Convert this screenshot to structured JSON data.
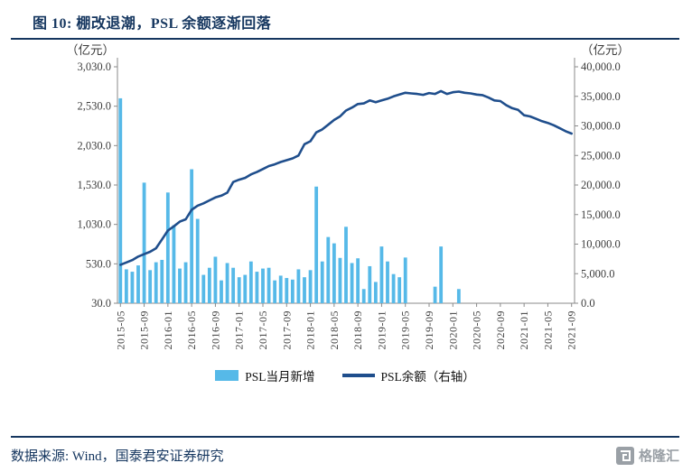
{
  "title": "图 10: 棚改退潮，PSL 余额逐渐回落",
  "legend": {
    "bars": "PSL当月新增",
    "line": "PSL余额（右轴）"
  },
  "footer": {
    "source": "数据来源: Wind，国泰君安证券研究",
    "logo": "格隆汇"
  },
  "colors": {
    "bar": "#56b9e8",
    "line": "#1f4e8c",
    "accent": "#15365f",
    "axis_text": "#3d3d3d"
  },
  "chart_data": {
    "type": "combo",
    "title": "图 10: 棚改退潮，PSL 余额逐渐回落",
    "left_axis_unit": "（亿元）",
    "right_axis_unit": "（亿元）",
    "left_ticks": [
      "30.0",
      "530.0",
      "1,030.0",
      "1,530.0",
      "2,030.0",
      "2,530.0",
      "3,030.0"
    ],
    "right_ticks": [
      "0.0",
      "5,000.0",
      "10,000.0",
      "15,000.0",
      "20,000.0",
      "25,000.0",
      "30,000.0",
      "35,000.0",
      "40,000.0"
    ],
    "left_range": [
      30,
      3030
    ],
    "right_range": [
      0,
      40000
    ],
    "x_label_every": 4,
    "legend_position": "bottom",
    "grid": false,
    "months": [
      "2015-05",
      "2015-06",
      "2015-07",
      "2015-08",
      "2015-09",
      "2015-10",
      "2015-11",
      "2015-12",
      "2016-01",
      "2016-02",
      "2016-03",
      "2016-04",
      "2016-05",
      "2016-06",
      "2016-07",
      "2016-08",
      "2016-09",
      "2016-10",
      "2016-11",
      "2016-12",
      "2017-01",
      "2017-02",
      "2017-03",
      "2017-04",
      "2017-05",
      "2017-06",
      "2017-07",
      "2017-08",
      "2017-09",
      "2017-10",
      "2017-11",
      "2017-12",
      "2018-01",
      "2018-02",
      "2018-03",
      "2018-04",
      "2018-05",
      "2018-06",
      "2018-07",
      "2018-08",
      "2018-09",
      "2018-10",
      "2018-11",
      "2018-12",
      "2019-01",
      "2019-02",
      "2019-03",
      "2019-04",
      "2019-05",
      "2019-06",
      "2019-07",
      "2019-08",
      "2019-09",
      "2019-10",
      "2019-11",
      "2019-12",
      "2020-01",
      "2020-02",
      "2020-03",
      "2020-04",
      "2020-05",
      "2020-06",
      "2020-07",
      "2020-08",
      "2020-09",
      "2020-10",
      "2020-11",
      "2020-12",
      "2021-01",
      "2021-02",
      "2021-03",
      "2021-04",
      "2021-05",
      "2021-06",
      "2021-07",
      "2021-08",
      "2021-09"
    ],
    "series": [
      {
        "name": "PSL当月新增",
        "type": "bar",
        "axis": "left",
        "values": [
          2630,
          460,
          430,
          510,
          1560,
          450,
          550,
          580,
          1435,
          1020,
          470,
          550,
          1730,
          1100,
          390,
          480,
          620,
          320,
          540,
          480,
          360,
          390,
          560,
          430,
          470,
          480,
          320,
          380,
          350,
          330,
          460,
          360,
          450,
          1510,
          560,
          870,
          790,
          605,
          1000,
          540,
          600,
          210,
          500,
          300,
          750,
          560,
          400,
          360,
          610,
          0,
          0,
          0,
          0,
          240,
          750,
          0,
          0,
          210,
          0,
          0,
          0,
          0,
          0,
          0,
          0,
          0,
          0,
          0,
          0,
          0,
          0,
          0,
          0,
          0,
          0,
          0,
          0
        ]
      },
      {
        "name": "PSL余额（右轴）",
        "type": "line",
        "axis": "right",
        "values": [
          6500,
          6900,
          7300,
          7900,
          8300,
          8700,
          9300,
          10800,
          12300,
          13000,
          13800,
          14200,
          15800,
          16500,
          16900,
          17400,
          17900,
          18200,
          18700,
          20500,
          20900,
          21200,
          21800,
          22200,
          22700,
          23200,
          23500,
          23900,
          24200,
          24500,
          25000,
          26900,
          27400,
          28900,
          29400,
          30200,
          31000,
          31600,
          32600,
          33100,
          33700,
          33800,
          34300,
          34000,
          34300,
          34600,
          35000,
          35300,
          35600,
          35500,
          35400,
          35250,
          35550,
          35400,
          35900,
          35400,
          35700,
          35800,
          35600,
          35500,
          35300,
          35200,
          34800,
          34300,
          34200,
          33500,
          33000,
          32700,
          31800,
          31600,
          31200,
          30800,
          30500,
          30100,
          29600,
          29100,
          28700
        ]
      }
    ]
  }
}
